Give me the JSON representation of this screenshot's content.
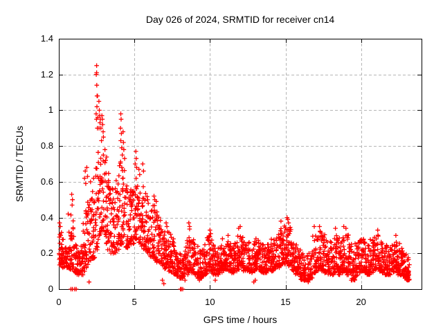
{
  "chart_data": {
    "type": "scatter",
    "title": "Day 026 of 2024, SRMTID for receiver cn14",
    "xlabel": "GPS time / hours",
    "ylabel": "SRMTID / TECUs",
    "xlim": [
      0,
      24
    ],
    "ylim": [
      0,
      1.4
    ],
    "xticks": [
      0,
      5,
      10,
      15,
      20
    ],
    "xtick_labels": [
      "0",
      "5",
      "10",
      "15",
      "20"
    ],
    "yticks": [
      0,
      0.2,
      0.4,
      0.6,
      0.8,
      1.0,
      1.2,
      1.4
    ],
    "ytick_labels": [
      "0",
      "0.2",
      "0.4",
      "0.6",
      "0.8",
      "1",
      "1.2",
      "1.4"
    ],
    "grid": true,
    "legend": "none",
    "marker": "plus",
    "colors": {
      "points": "#ff0000",
      "grid": "#b5b5b5",
      "axes": "#000000",
      "background": "#ffffff",
      "text": "#000000"
    },
    "scatter": {
      "description": "Dense 30s-cadence scatter; band envelope per 0.2h bin as [ymin,ymax] TECUs starting at t=0",
      "start": 0,
      "bin_width": 0.2,
      "points_per_bin": 22,
      "bins": [
        [
          0.13,
          0.33
        ],
        [
          0.12,
          0.3
        ],
        [
          0.12,
          0.28
        ],
        [
          0.11,
          0.4
        ],
        [
          0.1,
          0.45
        ],
        [
          0.09,
          0.25
        ],
        [
          0.08,
          0.22
        ],
        [
          0.08,
          0.24
        ],
        [
          0.1,
          0.45
        ],
        [
          0.12,
          0.5
        ],
        [
          0.14,
          0.52
        ],
        [
          0.17,
          0.55
        ],
        [
          0.22,
          0.75
        ],
        [
          0.3,
          0.85
        ],
        [
          0.32,
          0.8
        ],
        [
          0.25,
          0.75
        ],
        [
          0.22,
          0.65
        ],
        [
          0.2,
          0.58
        ],
        [
          0.2,
          0.62
        ],
        [
          0.22,
          0.66
        ],
        [
          0.25,
          0.72
        ],
        [
          0.25,
          0.68
        ],
        [
          0.23,
          0.6
        ],
        [
          0.25,
          0.56
        ],
        [
          0.25,
          0.55
        ],
        [
          0.28,
          0.62
        ],
        [
          0.26,
          0.6
        ],
        [
          0.24,
          0.58
        ],
        [
          0.22,
          0.56
        ],
        [
          0.2,
          0.52
        ],
        [
          0.18,
          0.46
        ],
        [
          0.17,
          0.48
        ],
        [
          0.15,
          0.46
        ],
        [
          0.15,
          0.42
        ],
        [
          0.13,
          0.38
        ],
        [
          0.11,
          0.36
        ],
        [
          0.1,
          0.33
        ],
        [
          0.09,
          0.29
        ],
        [
          0.08,
          0.26
        ],
        [
          0.07,
          0.23
        ],
        [
          0.06,
          0.2
        ],
        [
          0.07,
          0.22
        ],
        [
          0.08,
          0.28
        ],
        [
          0.1,
          0.34
        ],
        [
          0.09,
          0.28
        ],
        [
          0.08,
          0.25
        ],
        [
          0.06,
          0.22
        ],
        [
          0.06,
          0.22
        ],
        [
          0.08,
          0.26
        ],
        [
          0.1,
          0.3
        ],
        [
          0.1,
          0.28
        ],
        [
          0.08,
          0.25
        ],
        [
          0.08,
          0.23
        ],
        [
          0.09,
          0.26
        ],
        [
          0.1,
          0.29
        ],
        [
          0.11,
          0.3
        ],
        [
          0.1,
          0.28
        ],
        [
          0.09,
          0.25
        ],
        [
          0.1,
          0.27
        ],
        [
          0.11,
          0.31
        ],
        [
          0.12,
          0.33
        ],
        [
          0.1,
          0.29
        ],
        [
          0.1,
          0.27
        ],
        [
          0.09,
          0.25
        ],
        [
          0.1,
          0.27
        ],
        [
          0.11,
          0.29
        ],
        [
          0.1,
          0.27
        ],
        [
          0.09,
          0.25
        ],
        [
          0.09,
          0.25
        ],
        [
          0.1,
          0.27
        ],
        [
          0.1,
          0.29
        ],
        [
          0.11,
          0.31
        ],
        [
          0.12,
          0.33
        ],
        [
          0.13,
          0.35
        ],
        [
          0.14,
          0.36
        ],
        [
          0.15,
          0.38
        ],
        [
          0.13,
          0.36
        ],
        [
          0.1,
          0.29
        ],
        [
          0.08,
          0.25
        ],
        [
          0.07,
          0.22
        ],
        [
          0.05,
          0.2
        ],
        [
          0.04,
          0.18
        ],
        [
          0.05,
          0.2
        ],
        [
          0.06,
          0.24
        ],
        [
          0.09,
          0.3
        ],
        [
          0.1,
          0.32
        ],
        [
          0.11,
          0.34
        ],
        [
          0.1,
          0.32
        ],
        [
          0.09,
          0.3
        ],
        [
          0.08,
          0.27
        ],
        [
          0.08,
          0.27
        ],
        [
          0.09,
          0.32
        ],
        [
          0.08,
          0.29
        ],
        [
          0.09,
          0.31
        ],
        [
          0.1,
          0.33
        ],
        [
          0.08,
          0.31
        ],
        [
          0.06,
          0.27
        ],
        [
          0.05,
          0.22
        ],
        [
          0.07,
          0.26
        ],
        [
          0.09,
          0.28
        ],
        [
          0.1,
          0.29
        ],
        [
          0.09,
          0.27
        ],
        [
          0.08,
          0.25
        ],
        [
          0.09,
          0.28
        ],
        [
          0.1,
          0.3
        ],
        [
          0.11,
          0.31
        ],
        [
          0.1,
          0.29
        ],
        [
          0.09,
          0.27
        ],
        [
          0.08,
          0.25
        ],
        [
          0.08,
          0.24
        ],
        [
          0.09,
          0.26
        ],
        [
          0.1,
          0.28
        ],
        [
          0.08,
          0.26
        ],
        [
          0.07,
          0.23
        ],
        [
          0.06,
          0.21
        ],
        [
          0.05,
          0.18
        ]
      ],
      "spike_points": [
        [
          0.05,
          0.37
        ],
        [
          0.1,
          0.35
        ],
        [
          0.62,
          0.42
        ],
        [
          0.85,
          0.53
        ],
        [
          0.9,
          0.5
        ],
        [
          0.88,
          0.47
        ],
        [
          1.7,
          0.62
        ],
        [
          1.75,
          0.66
        ],
        [
          1.78,
          0.59
        ],
        [
          1.85,
          0.68
        ],
        [
          1.9,
          0.63
        ],
        [
          2.1,
          0.6
        ],
        [
          2.3,
          0.62
        ],
        [
          2.5,
          1.25
        ],
        [
          2.5,
          1.21
        ],
        [
          2.48,
          1.2
        ],
        [
          2.51,
          1.14
        ],
        [
          2.53,
          1.08
        ],
        [
          2.56,
          1.08
        ],
        [
          2.52,
          1.02
        ],
        [
          2.47,
          0.98
        ],
        [
          2.49,
          0.95
        ],
        [
          2.55,
          0.9
        ],
        [
          2.58,
          0.96
        ],
        [
          2.65,
          1.05
        ],
        [
          2.68,
          1.0
        ],
        [
          2.7,
          0.97
        ],
        [
          2.72,
          0.93
        ],
        [
          2.66,
          0.9
        ],
        [
          2.75,
          0.95
        ],
        [
          2.78,
          0.9
        ],
        [
          2.85,
          0.97
        ],
        [
          2.88,
          0.95
        ],
        [
          2.9,
          0.92
        ],
        [
          2.93,
          0.88
        ],
        [
          2.95,
          0.85
        ],
        [
          2.82,
          0.83
        ],
        [
          3.05,
          0.78
        ],
        [
          3.1,
          0.72
        ],
        [
          4.1,
          0.98
        ],
        [
          4.12,
          0.95
        ],
        [
          4.08,
          0.9
        ],
        [
          4.14,
          0.87
        ],
        [
          4.1,
          0.83
        ],
        [
          4.16,
          0.79
        ],
        [
          4.2,
          0.75
        ],
        [
          4.25,
          0.88
        ],
        [
          4.28,
          0.82
        ],
        [
          4.3,
          0.78
        ],
        [
          4.35,
          0.73
        ],
        [
          5.05,
          0.7
        ],
        [
          5.1,
          0.77
        ],
        [
          5.12,
          0.73
        ],
        [
          5.15,
          0.68
        ],
        [
          5.3,
          0.67
        ],
        [
          5.35,
          0.64
        ],
        [
          5.55,
          0.7
        ],
        [
          5.6,
          0.66
        ],
        [
          6.3,
          0.52
        ],
        [
          6.35,
          0.5
        ],
        [
          6.45,
          0.49
        ],
        [
          7.1,
          0.37
        ],
        [
          7.15,
          0.35
        ],
        [
          8.6,
          0.37
        ],
        [
          8.65,
          0.35
        ],
        [
          10.0,
          0.33
        ],
        [
          10.05,
          0.31
        ],
        [
          11.2,
          0.3
        ],
        [
          11.9,
          0.34
        ],
        [
          12.0,
          0.35
        ],
        [
          14.7,
          0.38
        ],
        [
          15.1,
          0.4
        ],
        [
          15.15,
          0.39
        ],
        [
          15.2,
          0.37
        ],
        [
          16.9,
          0.35
        ],
        [
          17.25,
          0.35
        ],
        [
          18.3,
          0.34
        ],
        [
          18.85,
          0.35
        ],
        [
          19.0,
          0.34
        ],
        [
          21.1,
          0.33
        ],
        [
          22.3,
          0.3
        ]
      ],
      "low_points": [
        [
          2.0,
          0.04
        ],
        [
          6.85,
          0.05
        ],
        [
          6.95,
          0.03
        ],
        [
          8.35,
          0.05
        ],
        [
          9.3,
          0.05
        ],
        [
          10.35,
          0.05
        ],
        [
          12.9,
          0.04
        ],
        [
          13.0,
          0.05
        ],
        [
          16.5,
          0.04
        ],
        [
          19.35,
          0.05
        ],
        [
          23.1,
          0.05
        ],
        [
          23.15,
          0.1
        ]
      ],
      "zero_xs": [
        0.8,
        0.9,
        1.05,
        1.15,
        8.05,
        8.1,
        8.2
      ]
    }
  }
}
